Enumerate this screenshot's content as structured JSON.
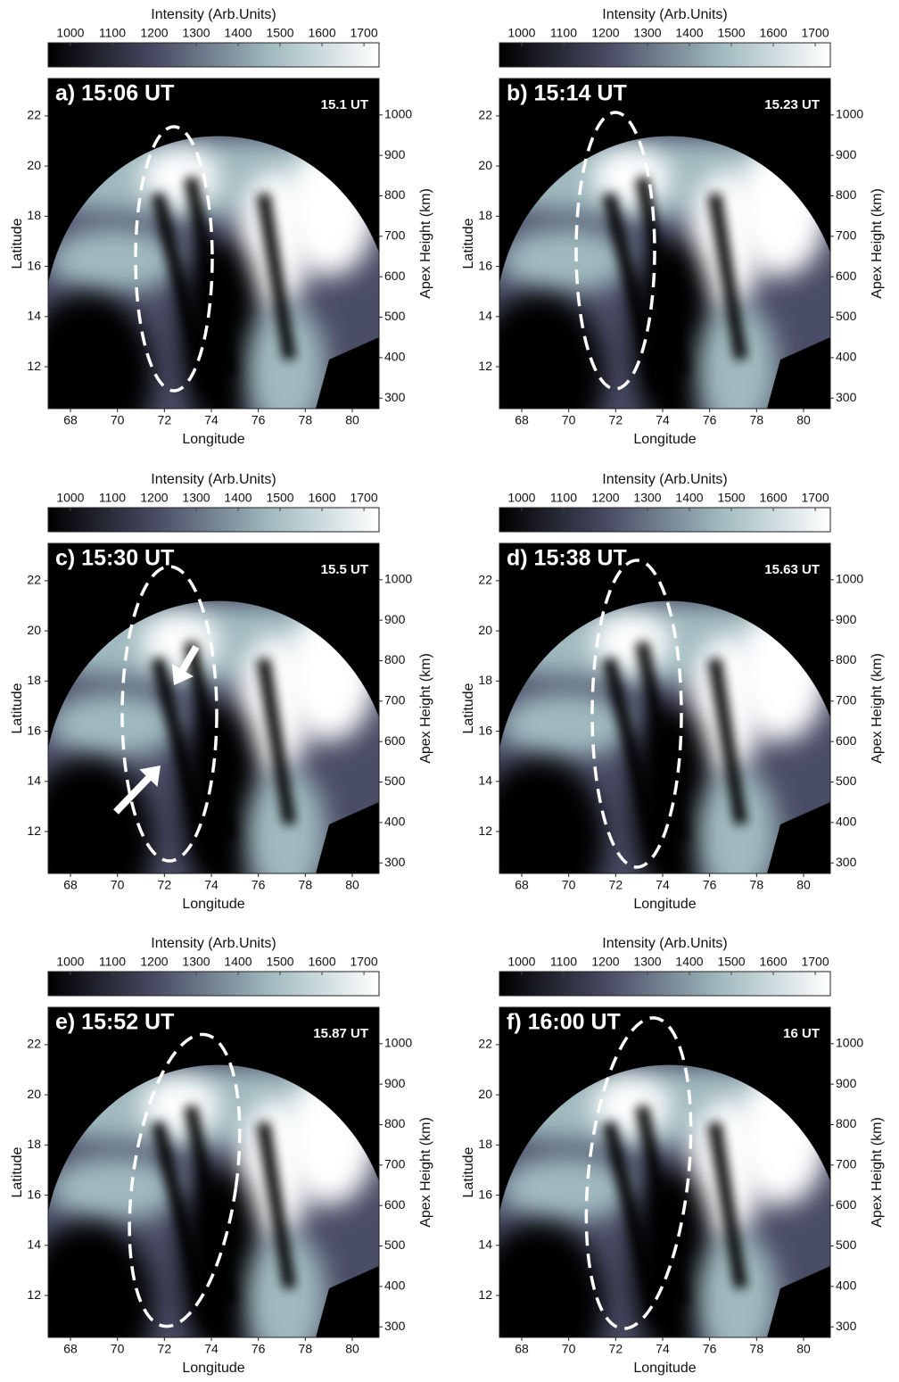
{
  "chart_data": [
    {
      "type": "image",
      "title": "a) 15:06 UT",
      "annotation": "15.1 UT",
      "colorbar_label": "Intensity (Arb.Units)",
      "colormap": [
        "#000000",
        "#4a4d66",
        "#9fb9be",
        "#ffffff"
      ],
      "colorbar_lim": [
        947,
        1736
      ],
      "colorbar_ticks": [
        1000,
        1100,
        1200,
        1300,
        1400,
        1500,
        1600,
        1700
      ],
      "xlabel": "Longitude",
      "ylabel": "Latitude",
      "y2label": "Apex Height (km)",
      "xlim": [
        67.05,
        81.14
      ],
      "xticks": [
        68,
        70,
        72,
        74,
        76,
        78,
        80
      ],
      "ylim": [
        10.33,
        23.49
      ],
      "yticks": [
        12,
        14,
        16,
        18,
        20,
        22
      ],
      "y2lim": [
        274,
        1090
      ],
      "y2ticks": [
        300,
        400,
        500,
        600,
        700,
        800,
        900,
        1000
      ]
    },
    {
      "type": "image",
      "title": "b) 15:14 UT",
      "annotation": "15.23 UT",
      "colorbar_label": "Intensity (Arb.Units)",
      "colormap": [
        "#000000",
        "#4a4d66",
        "#9fb9be",
        "#ffffff"
      ],
      "colorbar_lim": [
        947,
        1736
      ],
      "colorbar_ticks": [
        1000,
        1100,
        1200,
        1300,
        1400,
        1500,
        1600,
        1700
      ],
      "xlabel": "Longitude",
      "ylabel": "Latitude",
      "y2label": "Apex Height (km)",
      "xlim": [
        67.05,
        81.14
      ],
      "xticks": [
        68,
        70,
        72,
        74,
        76,
        78,
        80
      ],
      "ylim": [
        10.33,
        23.49
      ],
      "yticks": [
        12,
        14,
        16,
        18,
        20,
        22
      ],
      "y2lim": [
        274,
        1090
      ],
      "y2ticks": [
        300,
        400,
        500,
        600,
        700,
        800,
        900,
        1000
      ]
    },
    {
      "type": "image",
      "title": "c) 15:30 UT",
      "annotation": "15.5 UT",
      "colorbar_label": "Intensity (Arb.Units)",
      "colormap": [
        "#000000",
        "#4a4d66",
        "#9fb9be",
        "#ffffff"
      ],
      "colorbar_lim": [
        947,
        1736
      ],
      "colorbar_ticks": [
        1000,
        1100,
        1200,
        1300,
        1400,
        1500,
        1600,
        1700
      ],
      "xlabel": "Longitude",
      "ylabel": "Latitude",
      "y2label": "Apex Height (km)",
      "xlim": [
        67.05,
        81.14
      ],
      "xticks": [
        68,
        70,
        72,
        74,
        76,
        78,
        80
      ],
      "ylim": [
        10.33,
        23.49
      ],
      "yticks": [
        12,
        14,
        16,
        18,
        20,
        22
      ],
      "y2lim": [
        274,
        1090
      ],
      "y2ticks": [
        300,
        400,
        500,
        600,
        700,
        800,
        900,
        1000
      ]
    },
    {
      "type": "image",
      "title": "d) 15:38 UT",
      "annotation": "15.63 UT",
      "colorbar_label": "Intensity (Arb.Units)",
      "colormap": [
        "#000000",
        "#4a4d66",
        "#9fb9be",
        "#ffffff"
      ],
      "colorbar_lim": [
        947,
        1736
      ],
      "colorbar_ticks": [
        1000,
        1100,
        1200,
        1300,
        1400,
        1500,
        1600,
        1700
      ],
      "xlabel": "Longitude",
      "ylabel": "Latitude",
      "y2label": "Apex Height (km)",
      "xlim": [
        67.05,
        81.14
      ],
      "xticks": [
        68,
        70,
        72,
        74,
        76,
        78,
        80
      ],
      "ylim": [
        10.33,
        23.49
      ],
      "yticks": [
        12,
        14,
        16,
        18,
        20,
        22
      ],
      "y2lim": [
        274,
        1090
      ],
      "y2ticks": [
        300,
        400,
        500,
        600,
        700,
        800,
        900,
        1000
      ]
    },
    {
      "type": "image",
      "title": "e) 15:52 UT",
      "annotation": "15.87 UT",
      "colorbar_label": "Intensity (Arb.Units)",
      "colormap": [
        "#000000",
        "#4a4d66",
        "#9fb9be",
        "#ffffff"
      ],
      "colorbar_lim": [
        947,
        1736
      ],
      "colorbar_ticks": [
        1000,
        1100,
        1200,
        1300,
        1400,
        1500,
        1600,
        1700
      ],
      "xlabel": "Longitude",
      "ylabel": "Latitude",
      "y2label": "Apex Height (km)",
      "xlim": [
        67.05,
        81.14
      ],
      "xticks": [
        68,
        70,
        72,
        74,
        76,
        78,
        80
      ],
      "ylim": [
        10.33,
        23.49
      ],
      "yticks": [
        12,
        14,
        16,
        18,
        20,
        22
      ],
      "y2lim": [
        274,
        1090
      ],
      "y2ticks": [
        300,
        400,
        500,
        600,
        700,
        800,
        900,
        1000
      ]
    },
    {
      "type": "image",
      "title": "f) 16:00 UT",
      "annotation": "16 UT",
      "colorbar_label": "Intensity (Arb.Units)",
      "colormap": [
        "#000000",
        "#4a4d66",
        "#9fb9be",
        "#ffffff"
      ],
      "colorbar_lim": [
        947,
        1736
      ],
      "colorbar_ticks": [
        1000,
        1100,
        1200,
        1300,
        1400,
        1500,
        1600,
        1700
      ],
      "xlabel": "Longitude",
      "ylabel": "Latitude",
      "y2label": "Apex Height (km)",
      "xlim": [
        67.05,
        81.14
      ],
      "xticks": [
        68,
        70,
        72,
        74,
        76,
        78,
        80
      ],
      "ylim": [
        10.33,
        23.49
      ],
      "yticks": [
        12,
        14,
        16,
        18,
        20,
        22
      ],
      "y2lim": [
        274,
        1090
      ],
      "y2ticks": [
        300,
        400,
        500,
        600,
        700,
        800,
        900,
        1000
      ]
    }
  ]
}
